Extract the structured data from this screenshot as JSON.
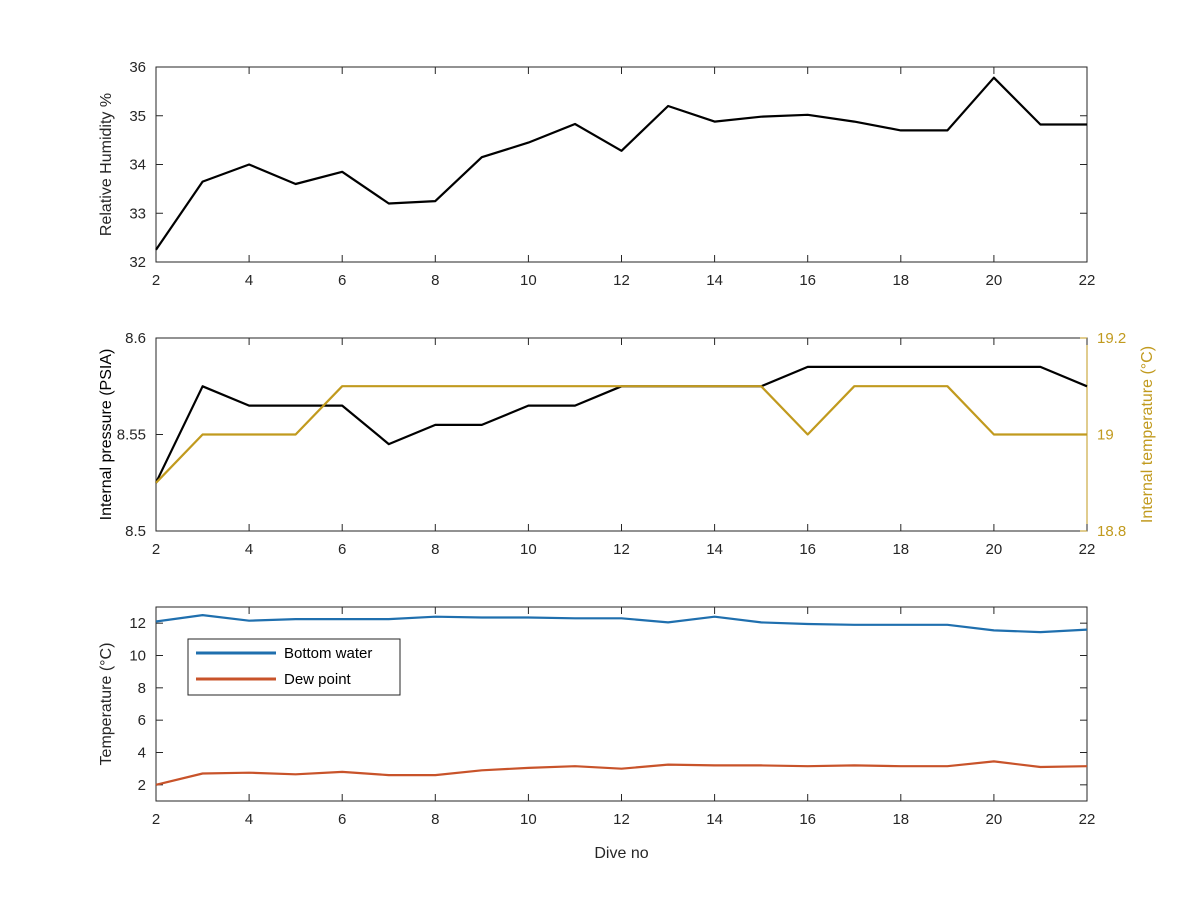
{
  "chart_data": [
    {
      "type": "line",
      "title": "",
      "xlabel": "",
      "ylabel": "Relative Humidity %",
      "xlim": [
        2,
        22
      ],
      "ylim": [
        32,
        36
      ],
      "xticks": [
        "2",
        "4",
        "6",
        "8",
        "10",
        "12",
        "14",
        "16",
        "18",
        "20",
        "22"
      ],
      "yticks": [
        "32",
        "33",
        "34",
        "35",
        "36"
      ],
      "grid": false,
      "series": [
        {
          "color": "#000000",
          "x": [
            2,
            3,
            4,
            5,
            6,
            7,
            8,
            9,
            10,
            11,
            12,
            13,
            14,
            15,
            16,
            17,
            18,
            19,
            20,
            21,
            22
          ],
          "y": [
            32.25,
            33.65,
            34.0,
            33.6,
            33.85,
            33.2,
            33.25,
            34.15,
            34.45,
            34.83,
            34.28,
            35.2,
            34.88,
            34.98,
            35.02,
            34.88,
            34.7,
            34.7,
            35.78,
            34.82,
            34.82
          ]
        }
      ]
    },
    {
      "type": "line",
      "title": "",
      "xlabel": "",
      "ylabel": "Internal pressure (PSIA)",
      "ylabel_right": "Internal temperature (°C)",
      "xlim": [
        2,
        22
      ],
      "ylim": [
        8.5,
        8.6
      ],
      "ylim_right": [
        18.8,
        19.2
      ],
      "xticks": [
        "2",
        "4",
        "6",
        "8",
        "10",
        "12",
        "14",
        "16",
        "18",
        "20",
        "22"
      ],
      "yticks": [
        "8.5",
        "8.55",
        "8.6"
      ],
      "yticks_right": [
        "18.8",
        "19",
        "19.2"
      ],
      "grid": false,
      "series": [
        {
          "axis": "left",
          "color": "#000000",
          "x": [
            2,
            3,
            4,
            5,
            6,
            7,
            8,
            9,
            10,
            11,
            12,
            13,
            14,
            15,
            16,
            17,
            18,
            19,
            20,
            21,
            22
          ],
          "y": [
            8.525,
            8.575,
            8.565,
            8.565,
            8.565,
            8.545,
            8.555,
            8.555,
            8.565,
            8.565,
            8.575,
            8.575,
            8.575,
            8.575,
            8.585,
            8.585,
            8.585,
            8.585,
            8.585,
            8.585,
            8.575
          ]
        },
        {
          "axis": "right",
          "color": "#C19A1E",
          "x": [
            2,
            3,
            4,
            5,
            6,
            7,
            8,
            9,
            10,
            11,
            12,
            13,
            14,
            15,
            16,
            17,
            18,
            19,
            20,
            21,
            22
          ],
          "y": [
            18.9,
            19.0,
            19.0,
            19.0,
            19.1,
            19.1,
            19.1,
            19.1,
            19.1,
            19.1,
            19.1,
            19.1,
            19.1,
            19.1,
            19.0,
            19.1,
            19.1,
            19.1,
            19.0,
            19.0,
            19.0
          ]
        }
      ]
    },
    {
      "type": "line",
      "title": "",
      "xlabel": "Dive no",
      "ylabel": "Temperature (°C)",
      "xlim": [
        2,
        22
      ],
      "ylim": [
        1,
        13
      ],
      "xticks": [
        "2",
        "4",
        "6",
        "8",
        "10",
        "12",
        "14",
        "16",
        "18",
        "20",
        "22"
      ],
      "yticks": [
        "2",
        "4",
        "6",
        "8",
        "10",
        "12"
      ],
      "grid": false,
      "legend": "top-left",
      "series": [
        {
          "name": "Bottom water",
          "color": "#1F6FAE",
          "x": [
            2,
            3,
            4,
            5,
            6,
            7,
            8,
            9,
            10,
            11,
            12,
            13,
            14,
            15,
            16,
            17,
            18,
            19,
            20,
            21,
            22
          ],
          "y": [
            12.1,
            12.5,
            12.15,
            12.25,
            12.25,
            12.25,
            12.4,
            12.35,
            12.35,
            12.3,
            12.3,
            12.05,
            12.4,
            12.05,
            11.95,
            11.9,
            11.9,
            11.9,
            11.55,
            11.45,
            11.6
          ]
        },
        {
          "name": "Dew point",
          "color": "#C8532A",
          "x": [
            2,
            3,
            4,
            5,
            6,
            7,
            8,
            9,
            10,
            11,
            12,
            13,
            14,
            15,
            16,
            17,
            18,
            19,
            20,
            21,
            22
          ],
          "y": [
            2.0,
            2.7,
            2.75,
            2.65,
            2.8,
            2.6,
            2.6,
            2.9,
            3.05,
            3.15,
            3.0,
            3.25,
            3.2,
            3.2,
            3.15,
            3.2,
            3.15,
            3.15,
            3.45,
            3.1,
            3.15
          ]
        }
      ]
    }
  ]
}
